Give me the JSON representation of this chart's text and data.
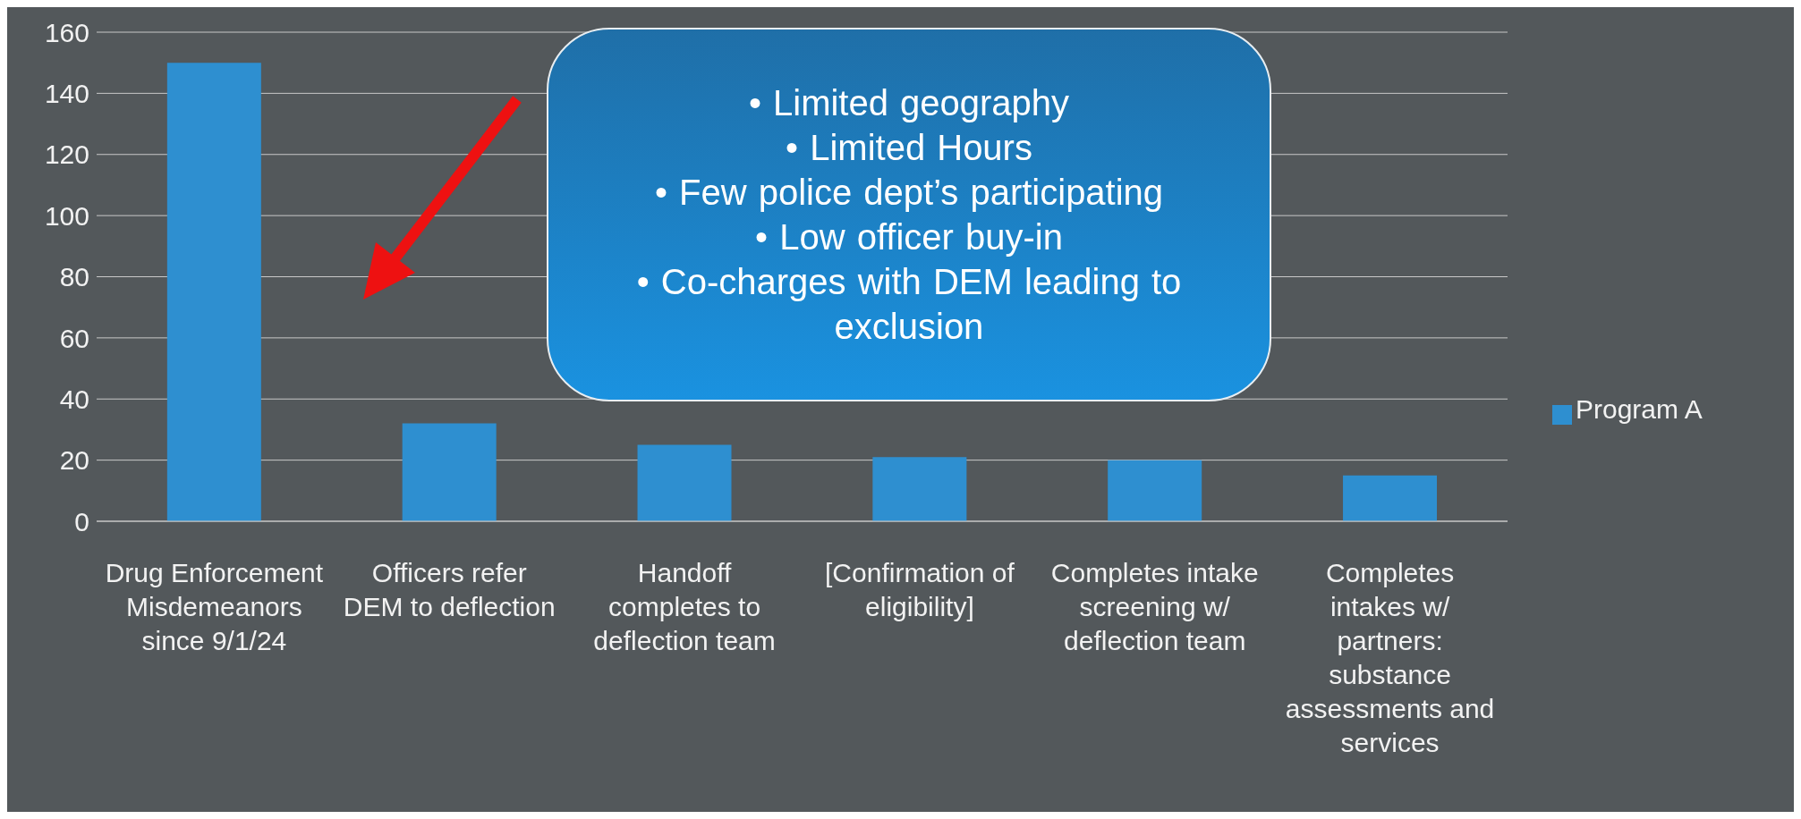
{
  "chart_data": {
    "type": "bar",
    "categories": [
      "Drug Enforcement Misdemeanors since 9/1/24",
      "Officers refer DEM to deflection",
      "Handoff completes to deflection team",
      "[Confirmation of eligibility]",
      "Completes intake screening w/ deflection team",
      "Completes intakes w/ partners: substance assessments and services"
    ],
    "series": [
      {
        "name": "Program A",
        "color": "#2e8fd0",
        "values": [
          150,
          32,
          25,
          21,
          20,
          15
        ]
      }
    ],
    "ylim": [
      0,
      160
    ],
    "yticks": [
      0,
      20,
      40,
      60,
      80,
      100,
      120,
      140,
      160
    ],
    "grid": "y",
    "legend": "right",
    "annotations": [
      "• Limited geography",
      "• Limited Hours",
      "• Few police dept’s participating",
      "• Low officer buy-in",
      "• Co-charges with DEM leading to exclusion"
    ]
  }
}
